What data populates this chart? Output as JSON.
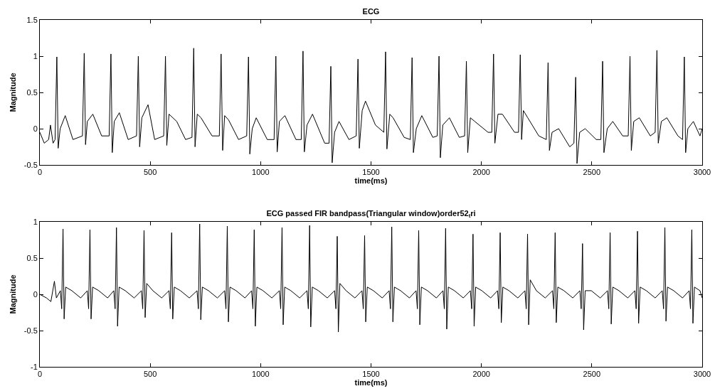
{
  "chart_data": [
    {
      "type": "line",
      "title": "ECG",
      "xlabel": "time(ms)",
      "ylabel": "Magnitude",
      "color": "#000000",
      "x": [
        0,
        20,
        40,
        48,
        60,
        69,
        77,
        83,
        92,
        115,
        150,
        193,
        201,
        207,
        215,
        240,
        280,
        314,
        322,
        328,
        337,
        360,
        400,
        438,
        446,
        452,
        462,
        490,
        520,
        561,
        569,
        575,
        585,
        620,
        660,
        689,
        697,
        703,
        713,
        730,
        780,
        813,
        821,
        828,
        837,
        855,
        900,
        937,
        945,
        951,
        962,
        980,
        1030,
        1061,
        1069,
        1075,
        1085,
        1110,
        1160,
        1184,
        1192,
        1198,
        1210,
        1235,
        1290,
        1310,
        1318,
        1324,
        1335,
        1355,
        1400,
        1433,
        1441,
        1447,
        1460,
        1475,
        1520,
        1558,
        1566,
        1572,
        1585,
        1600,
        1650,
        1678,
        1686,
        1692,
        1705,
        1730,
        1780,
        1800,
        1808,
        1814,
        1825,
        1855,
        1900,
        1924,
        1932,
        1938,
        1950,
        1970,
        2030,
        2047,
        2055,
        2061,
        2075,
        2095,
        2150,
        2168,
        2176,
        2182,
        2190,
        2210,
        2260,
        2294,
        2302,
        2308,
        2320,
        2350,
        2400,
        2419,
        2427,
        2433,
        2445,
        2470,
        2520,
        2541,
        2549,
        2555,
        2570,
        2595,
        2640,
        2665,
        2673,
        2679,
        2690,
        2715,
        2765,
        2787,
        2795,
        2801,
        2815,
        2840,
        2890,
        2911,
        2919,
        2925,
        2935,
        2960,
        2990,
        3000
      ],
      "values": [
        -0.05,
        -0.2,
        -0.15,
        0.05,
        -0.2,
        -0.15,
        0.99,
        -0.27,
        0.0,
        0.18,
        -0.15,
        -0.1,
        1.04,
        -0.22,
        0.1,
        0.2,
        -0.1,
        -0.1,
        1.03,
        -0.33,
        0.1,
        0.22,
        -0.15,
        -0.1,
        1.0,
        -0.25,
        0.15,
        0.33,
        -0.15,
        -0.1,
        1.0,
        -0.23,
        0.2,
        0.1,
        -0.15,
        -0.12,
        1.11,
        -0.25,
        0.2,
        0.15,
        -0.1,
        -0.1,
        1.03,
        -0.3,
        0.18,
        0.12,
        -0.15,
        -0.1,
        0.99,
        -0.35,
        0.0,
        0.15,
        -0.15,
        -0.15,
        1.0,
        -0.32,
        0.1,
        0.18,
        -0.15,
        -0.15,
        1.07,
        -0.32,
        0.05,
        0.2,
        -0.2,
        -0.2,
        0.86,
        -0.47,
        -0.05,
        0.1,
        -0.15,
        -0.1,
        0.96,
        -0.27,
        0.25,
        0.38,
        0.05,
        -0.05,
        1.06,
        -0.28,
        0.2,
        0.15,
        -0.12,
        -0.15,
        0.98,
        -0.33,
        0.0,
        0.18,
        -0.12,
        -0.1,
        1.0,
        -0.4,
        0.05,
        0.15,
        -0.12,
        -0.1,
        0.93,
        -0.33,
        0.15,
        0.1,
        -0.05,
        -0.05,
        1.03,
        -0.2,
        0.2,
        0.2,
        -0.05,
        -0.05,
        1.02,
        -0.15,
        0.25,
        0.15,
        -0.1,
        -0.15,
        0.91,
        -0.3,
        -0.05,
        0.0,
        -0.25,
        -0.2,
        0.71,
        -0.48,
        -0.05,
        0.0,
        -0.15,
        -0.15,
        0.93,
        -0.33,
        0.0,
        0.1,
        -0.1,
        -0.1,
        1.0,
        -0.3,
        0.1,
        0.15,
        -0.1,
        -0.05,
        1.08,
        -0.2,
        0.1,
        0.15,
        -0.1,
        -0.15,
        0.99,
        -0.33,
        0.0,
        0.1,
        -0.1,
        0.0
      ],
      "xlim": [
        0,
        3000
      ],
      "xticks": [
        0,
        500,
        1000,
        1500,
        2000,
        2500,
        3000
      ],
      "ylim": [
        -0.5,
        1.5
      ],
      "yticks": [
        -0.5,
        0,
        0.5,
        1,
        1.5
      ]
    },
    {
      "type": "line",
      "title": "ECG passed FIR bandpass(Triangular window)order52$_{t}$ri",
      "xlabel": "time(ms)",
      "ylabel": "Magnitude",
      "color": "#000000",
      "x": [
        0,
        30,
        50,
        66,
        75,
        93,
        99,
        105,
        110,
        117,
        145,
        185,
        215,
        221,
        227,
        232,
        239,
        267,
        307,
        335,
        341,
        347,
        352,
        359,
        387,
        427,
        460,
        466,
        472,
        477,
        484,
        512,
        552,
        585,
        591,
        597,
        602,
        609,
        637,
        677,
        712,
        718,
        724,
        729,
        736,
        764,
        804,
        837,
        843,
        849,
        854,
        861,
        889,
        929,
        959,
        965,
        971,
        976,
        983,
        1011,
        1051,
        1085,
        1091,
        1097,
        1102,
        1109,
        1137,
        1177,
        1210,
        1216,
        1222,
        1227,
        1234,
        1262,
        1302,
        1335,
        1341,
        1347,
        1352,
        1359,
        1387,
        1427,
        1459,
        1465,
        1471,
        1476,
        1483,
        1511,
        1551,
        1582,
        1588,
        1594,
        1599,
        1606,
        1634,
        1674,
        1704,
        1710,
        1716,
        1721,
        1728,
        1756,
        1796,
        1826,
        1832,
        1838,
        1843,
        1850,
        1878,
        1918,
        1950,
        1956,
        1962,
        1967,
        1974,
        2002,
        2042,
        2073,
        2079,
        2085,
        2090,
        2097,
        2125,
        2165,
        2197,
        2203,
        2209,
        2214,
        2221,
        2249,
        2289,
        2322,
        2328,
        2334,
        2339,
        2346,
        2374,
        2414,
        2446,
        2452,
        2458,
        2463,
        2470,
        2498,
        2538,
        2571,
        2577,
        2583,
        2588,
        2595,
        2623,
        2663,
        2695,
        2701,
        2707,
        2712,
        2719,
        2747,
        2787,
        2819,
        2825,
        2831,
        2836,
        2843,
        2871,
        2911,
        2941,
        2947,
        2953,
        2958,
        2965,
        2990,
        3000
      ],
      "values": [
        0.0,
        -0.05,
        -0.1,
        0.18,
        -0.05,
        0.05,
        -0.2,
        0.9,
        -0.34,
        0.1,
        0.05,
        -0.05,
        0.05,
        -0.2,
        0.89,
        -0.34,
        0.1,
        0.05,
        -0.05,
        0.05,
        -0.2,
        0.92,
        -0.44,
        0.1,
        0.05,
        -0.05,
        0.05,
        -0.2,
        0.88,
        -0.32,
        0.15,
        0.05,
        -0.05,
        0.05,
        -0.2,
        0.85,
        -0.34,
        0.1,
        0.05,
        -0.05,
        0.05,
        -0.2,
        0.97,
        -0.35,
        0.1,
        0.05,
        -0.05,
        0.05,
        -0.2,
        0.94,
        -0.38,
        0.1,
        0.05,
        -0.05,
        0.05,
        -0.2,
        0.89,
        -0.44,
        0.1,
        0.05,
        -0.05,
        0.05,
        -0.2,
        0.92,
        -0.42,
        0.1,
        0.05,
        -0.05,
        0.05,
        -0.2,
        0.95,
        -0.45,
        0.1,
        0.05,
        -0.05,
        0.05,
        -0.2,
        0.8,
        -0.52,
        0.15,
        0.05,
        -0.05,
        0.05,
        -0.2,
        0.81,
        -0.38,
        0.1,
        0.05,
        -0.05,
        0.05,
        -0.2,
        0.93,
        -0.38,
        0.1,
        0.05,
        -0.05,
        0.05,
        -0.2,
        0.88,
        -0.42,
        0.1,
        0.05,
        -0.05,
        0.05,
        -0.2,
        0.91,
        -0.48,
        0.1,
        0.05,
        -0.05,
        0.05,
        -0.2,
        0.83,
        -0.44,
        0.1,
        0.05,
        -0.05,
        0.05,
        -0.2,
        0.85,
        -0.39,
        0.1,
        0.05,
        -0.05,
        0.05,
        -0.2,
        0.83,
        -0.42,
        0.2,
        0.05,
        -0.05,
        0.05,
        -0.2,
        0.85,
        -0.39,
        0.1,
        0.05,
        -0.05,
        0.05,
        -0.2,
        0.7,
        -0.49,
        0.05,
        0.05,
        -0.05,
        0.05,
        -0.2,
        0.85,
        -0.41,
        0.1,
        0.05,
        -0.05,
        0.05,
        -0.2,
        0.87,
        -0.4,
        0.1,
        0.05,
        -0.05,
        0.05,
        -0.2,
        0.92,
        -0.37,
        0.1,
        0.05,
        -0.05,
        0.05,
        -0.2,
        0.89,
        -0.4,
        0.1,
        0.05,
        -0.05
      ],
      "xlim": [
        0,
        3000
      ],
      "xticks": [
        0,
        500,
        1000,
        1500,
        2000,
        2500,
        3000
      ],
      "ylim": [
        -1,
        1
      ],
      "yticks": [
        -1,
        -0.5,
        0,
        0.5,
        1
      ]
    }
  ]
}
